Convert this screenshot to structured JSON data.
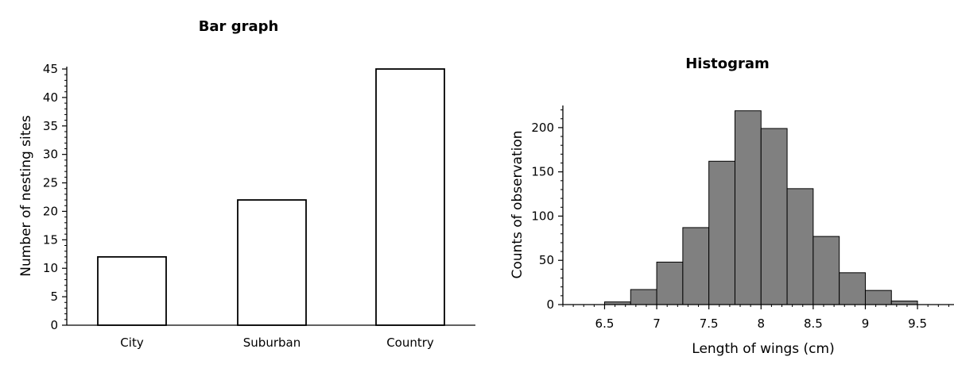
{
  "chart_data": [
    {
      "type": "bar",
      "title": "Bar graph",
      "xlabel": "",
      "ylabel": "Number of nesting sites",
      "categories": [
        "City",
        "Suburban",
        "Country"
      ],
      "values": [
        12,
        22,
        45
      ],
      "ylim": [
        0,
        45
      ],
      "yticks": [
        0,
        5,
        10,
        15,
        20,
        25,
        30,
        35,
        40,
        45
      ],
      "bar_fill": "#ffffff",
      "bar_stroke": "#000000",
      "grid": false
    },
    {
      "type": "histogram",
      "title": "Histogram",
      "xlabel": "Length of wings (cm)",
      "ylabel": "Counts of observation",
      "bin_edges": [
        6.5,
        6.75,
        7.0,
        7.25,
        7.5,
        7.75,
        8.0,
        8.25,
        8.5,
        8.75,
        9.0,
        9.25,
        9.5
      ],
      "counts": [
        3,
        17,
        48,
        87,
        162,
        219,
        199,
        131,
        77,
        36,
        16,
        4
      ],
      "xticks": [
        6.5,
        7,
        7.5,
        8,
        8.5,
        9,
        9.5
      ],
      "yticks": [
        0,
        50,
        100,
        150,
        200
      ],
      "xlim": [
        6.1,
        9.85
      ],
      "ylim": [
        0,
        225
      ],
      "bar_fill": "#808080",
      "bar_stroke": "#000000",
      "grid": false
    }
  ]
}
